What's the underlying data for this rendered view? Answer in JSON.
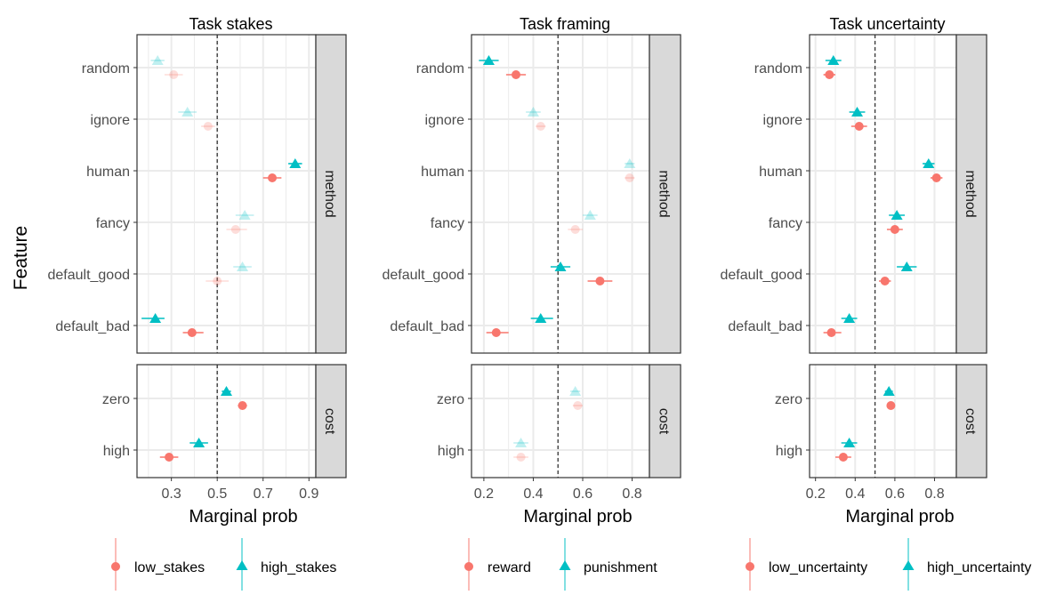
{
  "figure": {
    "y_axis_title": "Feature",
    "x_axis_title": "Marginal prob",
    "strip_labels": {
      "method": "method",
      "cost": "cost"
    },
    "reference_line": 0.5
  },
  "colors": {
    "group1": "#F8766D",
    "group2": "#00BFC4",
    "strip_bg": "#D9D9D9",
    "panel_border": "#333333",
    "grid": "#EBEBEB",
    "axis_text": "#4D4D4D"
  },
  "chart_data": [
    {
      "type": "scatter",
      "title": "Task stakes",
      "xlabel": "Marginal prob",
      "ylabel": "Feature",
      "xlim": [
        0.15,
        0.93
      ],
      "xticks": [
        0.3,
        0.5,
        0.7,
        0.9
      ],
      "xtick_labels": [
        "0.3",
        "0.5",
        "0.7",
        "0.9"
      ],
      "method_levels": [
        "random",
        "ignore",
        "human",
        "fancy",
        "default_good",
        "default_bad"
      ],
      "cost_levels": [
        "zero",
        "high"
      ],
      "legend": [
        {
          "name": "low_stakes",
          "shape": "circle",
          "color": "#F8766D"
        },
        {
          "name": "high_stakes",
          "shape": "triangle",
          "color": "#00BFC4"
        }
      ],
      "series": [
        {
          "name": "low_stakes",
          "shape": "circle",
          "color": "#F8766D",
          "method": [
            {
              "level": "random",
              "value": 0.31,
              "lo": 0.27,
              "hi": 0.35,
              "faded": true
            },
            {
              "level": "ignore",
              "value": 0.46,
              "lo": 0.43,
              "hi": 0.49,
              "faded": true
            },
            {
              "level": "human",
              "value": 0.74,
              "lo": 0.7,
              "hi": 0.78,
              "faded": false
            },
            {
              "level": "fancy",
              "value": 0.58,
              "lo": 0.54,
              "hi": 0.63,
              "faded": true
            },
            {
              "level": "default_good",
              "value": 0.5,
              "lo": 0.45,
              "hi": 0.55,
              "faded": true
            },
            {
              "level": "default_bad",
              "value": 0.39,
              "lo": 0.35,
              "hi": 0.44,
              "faded": false
            }
          ],
          "cost": [
            {
              "level": "zero",
              "value": 0.61,
              "lo": 0.59,
              "hi": 0.63,
              "faded": false
            },
            {
              "level": "high",
              "value": 0.29,
              "lo": 0.25,
              "hi": 0.33,
              "faded": false
            }
          ]
        },
        {
          "name": "high_stakes",
          "shape": "triangle",
          "color": "#00BFC4",
          "method": [
            {
              "level": "random",
              "value": 0.24,
              "lo": 0.21,
              "hi": 0.27,
              "faded": true
            },
            {
              "level": "ignore",
              "value": 0.37,
              "lo": 0.33,
              "hi": 0.41,
              "faded": true
            },
            {
              "level": "human",
              "value": 0.84,
              "lo": 0.81,
              "hi": 0.87,
              "faded": false
            },
            {
              "level": "fancy",
              "value": 0.62,
              "lo": 0.58,
              "hi": 0.66,
              "faded": true
            },
            {
              "level": "default_good",
              "value": 0.61,
              "lo": 0.57,
              "hi": 0.65,
              "faded": true
            },
            {
              "level": "default_bad",
              "value": 0.23,
              "lo": 0.17,
              "hi": 0.27,
              "faded": false
            }
          ],
          "cost": [
            {
              "level": "zero",
              "value": 0.54,
              "lo": 0.52,
              "hi": 0.56,
              "faded": false
            },
            {
              "level": "high",
              "value": 0.42,
              "lo": 0.38,
              "hi": 0.46,
              "faded": false
            }
          ]
        }
      ]
    },
    {
      "type": "scatter",
      "title": "Task framing",
      "xlabel": "Marginal prob",
      "ylabel": "Feature",
      "xlim": [
        0.15,
        0.87
      ],
      "xticks": [
        0.2,
        0.4,
        0.6,
        0.8
      ],
      "xtick_labels": [
        "0.2",
        "0.4",
        "0.6",
        "0.8"
      ],
      "method_levels": [
        "random",
        "ignore",
        "human",
        "fancy",
        "default_good",
        "default_bad"
      ],
      "cost_levels": [
        "zero",
        "high"
      ],
      "legend": [
        {
          "name": "reward",
          "shape": "circle",
          "color": "#F8766D"
        },
        {
          "name": "punishment",
          "shape": "triangle",
          "color": "#00BFC4"
        }
      ],
      "series": [
        {
          "name": "reward",
          "shape": "circle",
          "color": "#F8766D",
          "method": [
            {
              "level": "random",
              "value": 0.33,
              "lo": 0.29,
              "hi": 0.37,
              "faded": false
            },
            {
              "level": "ignore",
              "value": 0.43,
              "lo": 0.41,
              "hi": 0.45,
              "faded": true
            },
            {
              "level": "human",
              "value": 0.79,
              "lo": 0.77,
              "hi": 0.81,
              "faded": true
            },
            {
              "level": "fancy",
              "value": 0.57,
              "lo": 0.54,
              "hi": 0.6,
              "faded": true
            },
            {
              "level": "default_good",
              "value": 0.67,
              "lo": 0.62,
              "hi": 0.72,
              "faded": false
            },
            {
              "level": "default_bad",
              "value": 0.25,
              "lo": 0.21,
              "hi": 0.3,
              "faded": false
            }
          ],
          "cost": [
            {
              "level": "zero",
              "value": 0.58,
              "lo": 0.56,
              "hi": 0.6,
              "faded": true
            },
            {
              "level": "high",
              "value": 0.35,
              "lo": 0.32,
              "hi": 0.38,
              "faded": true
            }
          ]
        },
        {
          "name": "punishment",
          "shape": "triangle",
          "color": "#00BFC4",
          "method": [
            {
              "level": "random",
              "value": 0.22,
              "lo": 0.18,
              "hi": 0.26,
              "faded": false
            },
            {
              "level": "ignore",
              "value": 0.4,
              "lo": 0.37,
              "hi": 0.43,
              "faded": true
            },
            {
              "level": "human",
              "value": 0.79,
              "lo": 0.77,
              "hi": 0.81,
              "faded": true
            },
            {
              "level": "fancy",
              "value": 0.63,
              "lo": 0.6,
              "hi": 0.66,
              "faded": true
            },
            {
              "level": "default_good",
              "value": 0.51,
              "lo": 0.47,
              "hi": 0.55,
              "faded": false
            },
            {
              "level": "default_bad",
              "value": 0.43,
              "lo": 0.39,
              "hi": 0.48,
              "faded": false
            }
          ],
          "cost": [
            {
              "level": "zero",
              "value": 0.57,
              "lo": 0.55,
              "hi": 0.59,
              "faded": true
            },
            {
              "level": "high",
              "value": 0.35,
              "lo": 0.32,
              "hi": 0.38,
              "faded": true
            }
          ]
        }
      ]
    },
    {
      "type": "scatter",
      "title": "Task uncertainty",
      "xlabel": "Marginal prob",
      "ylabel": "Feature",
      "xlim": [
        0.17,
        0.91
      ],
      "xticks": [
        0.2,
        0.4,
        0.6,
        0.8
      ],
      "xtick_labels": [
        "0.2",
        "0.4",
        "0.6",
        "0.8"
      ],
      "method_levels": [
        "random",
        "ignore",
        "human",
        "fancy",
        "default_good",
        "default_bad"
      ],
      "cost_levels": [
        "zero",
        "high"
      ],
      "legend": [
        {
          "name": "low_uncertainty",
          "shape": "circle",
          "color": "#F8766D"
        },
        {
          "name": "high_uncertainty",
          "shape": "triangle",
          "color": "#00BFC4"
        }
      ],
      "series": [
        {
          "name": "low_uncertainty",
          "shape": "circle",
          "color": "#F8766D",
          "method": [
            {
              "level": "random",
              "value": 0.27,
              "lo": 0.24,
              "hi": 0.3,
              "faded": false
            },
            {
              "level": "ignore",
              "value": 0.42,
              "lo": 0.38,
              "hi": 0.46,
              "faded": false
            },
            {
              "level": "human",
              "value": 0.81,
              "lo": 0.78,
              "hi": 0.84,
              "faded": false
            },
            {
              "level": "fancy",
              "value": 0.6,
              "lo": 0.56,
              "hi": 0.64,
              "faded": false
            },
            {
              "level": "default_good",
              "value": 0.55,
              "lo": 0.52,
              "hi": 0.58,
              "faded": false
            },
            {
              "level": "default_bad",
              "value": 0.28,
              "lo": 0.24,
              "hi": 0.33,
              "faded": false
            }
          ],
          "cost": [
            {
              "level": "zero",
              "value": 0.58,
              "lo": 0.57,
              "hi": 0.59,
              "faded": false
            },
            {
              "level": "high",
              "value": 0.34,
              "lo": 0.3,
              "hi": 0.38,
              "faded": false
            }
          ]
        },
        {
          "name": "high_uncertainty",
          "shape": "triangle",
          "color": "#00BFC4",
          "method": [
            {
              "level": "random",
              "value": 0.29,
              "lo": 0.25,
              "hi": 0.33,
              "faded": false
            },
            {
              "level": "ignore",
              "value": 0.41,
              "lo": 0.37,
              "hi": 0.45,
              "faded": false
            },
            {
              "level": "human",
              "value": 0.77,
              "lo": 0.74,
              "hi": 0.8,
              "faded": false
            },
            {
              "level": "fancy",
              "value": 0.61,
              "lo": 0.57,
              "hi": 0.65,
              "faded": false
            },
            {
              "level": "default_good",
              "value": 0.66,
              "lo": 0.61,
              "hi": 0.71,
              "faded": false
            },
            {
              "level": "default_bad",
              "value": 0.37,
              "lo": 0.33,
              "hi": 0.41,
              "faded": false
            }
          ],
          "cost": [
            {
              "level": "zero",
              "value": 0.57,
              "lo": 0.55,
              "hi": 0.59,
              "faded": false
            },
            {
              "level": "high",
              "value": 0.37,
              "lo": 0.33,
              "hi": 0.41,
              "faded": false
            }
          ]
        }
      ]
    }
  ]
}
